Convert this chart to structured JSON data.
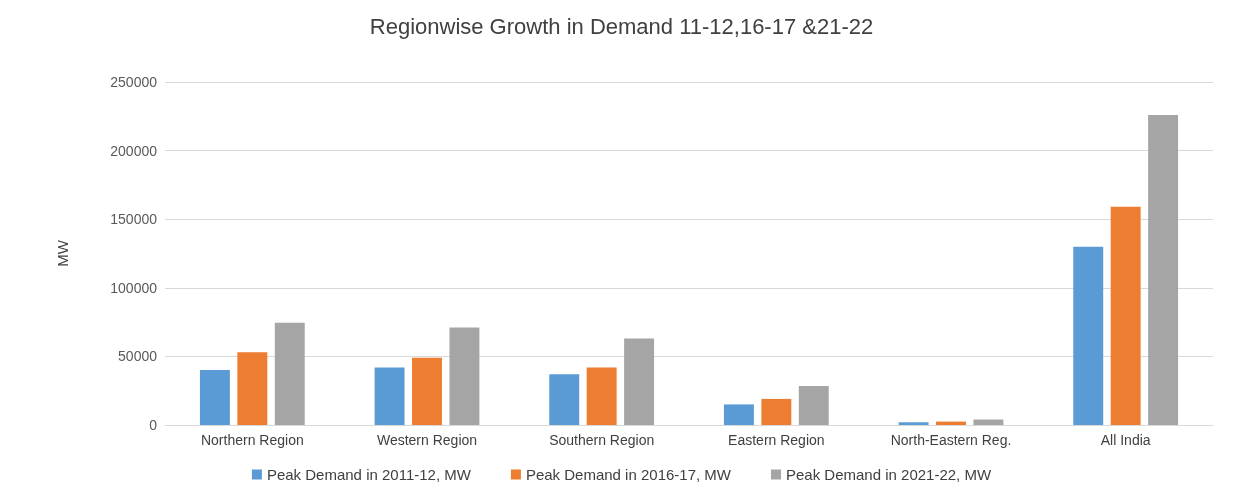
{
  "chart_data": {
    "type": "bar",
    "title": "Regionwise Growth in Demand 11-12,16-17 &21-22",
    "ylabel": "MW",
    "categories": [
      "Northern Region",
      "Western Region",
      "Southern Region",
      "Eastern Region",
      "North-Eastern Reg.",
      "All India"
    ],
    "series": [
      {
        "name": "Peak Demand in 2011-12, MW",
        "color": "#5b9bd5",
        "values": [
          40000,
          42000,
          37000,
          15000,
          2000,
          130000
        ]
      },
      {
        "name": "Peak Demand in 2016-17, MW",
        "color": "#ed7d31",
        "values": [
          53000,
          49000,
          42000,
          19000,
          2500,
          159000
        ]
      },
      {
        "name": "Peak Demand in 2021-22, MW",
        "color": "#a5a5a5",
        "values": [
          74500,
          71000,
          63000,
          28500,
          4000,
          226000
        ]
      }
    ],
    "ylim": [
      0,
      250000
    ],
    "yticks": [
      0,
      50000,
      100000,
      150000,
      200000,
      250000
    ],
    "grid": "y",
    "legend": "bottom"
  }
}
